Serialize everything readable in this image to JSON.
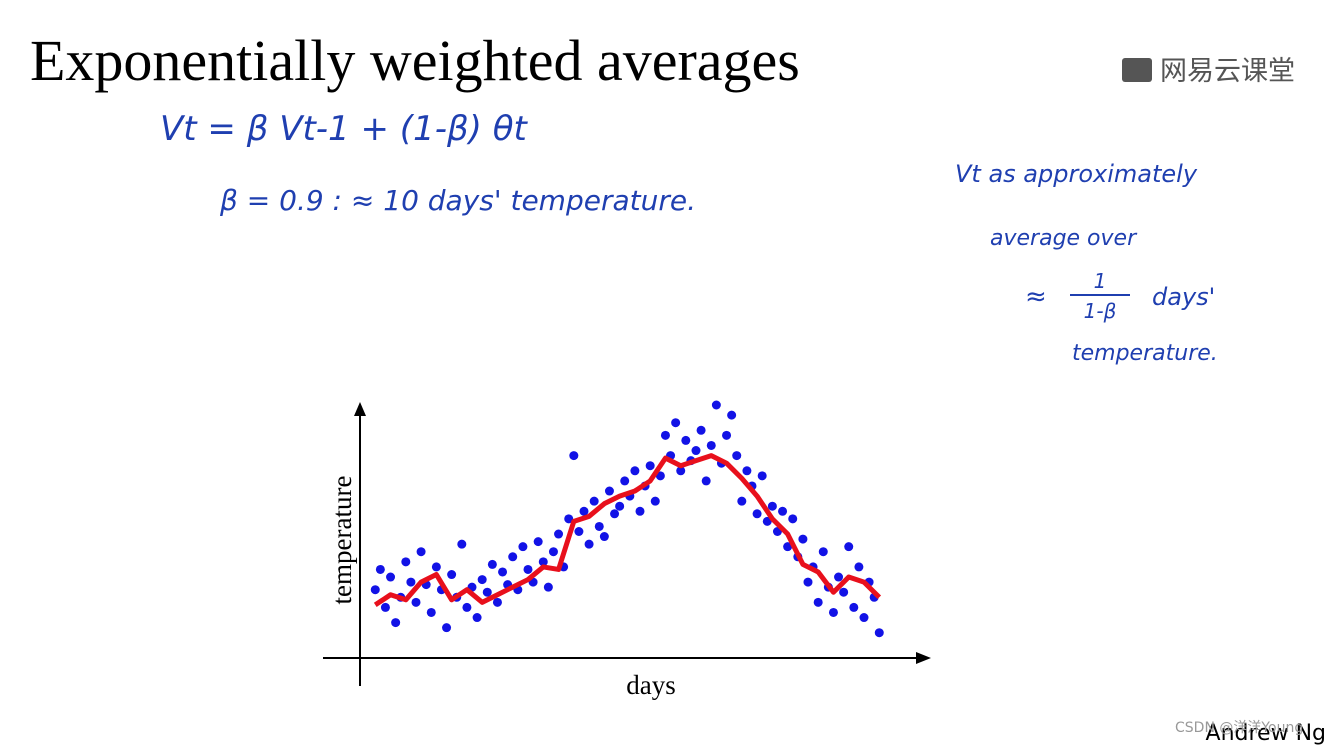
{
  "header": {
    "title": "Exponentially weighted averages",
    "logo": "网易云课堂"
  },
  "notes": {
    "formula": "Vt = β Vt-1 + (1-β) θt",
    "beta": "β = 0.9 : ≈ 10 days' temperature.",
    "side": {
      "line1": "Vt as approximately",
      "line2": "average over",
      "approx": "≈",
      "numerator": "1",
      "denominator": "1-β",
      "days": "days'",
      "line4": "temperature."
    }
  },
  "chart_data": {
    "type": "scatter",
    "xlabel": "days",
    "ylabel": "temperature",
    "xlim": [
      0,
      110
    ],
    "ylim": [
      0,
      100
    ],
    "series": [
      {
        "style": "points",
        "color": "#1212e6",
        "x": [
          3,
          4,
          5,
          6,
          7,
          8,
          9,
          10,
          11,
          12,
          13,
          14,
          15,
          16,
          17,
          18,
          19,
          20,
          21,
          22,
          23,
          24,
          25,
          26,
          27,
          28,
          29,
          30,
          31,
          32,
          33,
          34,
          35,
          36,
          37,
          38,
          39,
          40,
          41,
          42,
          43,
          44,
          45,
          46,
          47,
          48,
          49,
          50,
          51,
          52,
          53,
          54,
          55,
          56,
          57,
          58,
          59,
          60,
          61,
          62,
          63,
          64,
          65,
          66,
          67,
          68,
          69,
          70,
          71,
          72,
          73,
          74,
          75,
          76,
          77,
          78,
          79,
          80,
          81,
          82,
          83,
          84,
          85,
          86,
          87,
          88,
          89,
          90,
          91,
          92,
          93,
          94,
          95,
          96,
          97,
          98,
          99,
          100,
          101,
          102
        ],
        "values": [
          27,
          35,
          20,
          32,
          14,
          24,
          38,
          30,
          22,
          42,
          29,
          18,
          36,
          27,
          12,
          33,
          24,
          45,
          20,
          28,
          16,
          31,
          26,
          37,
          22,
          34,
          29,
          40,
          27,
          44,
          35,
          30,
          46,
          38,
          28,
          42,
          49,
          36,
          55,
          80,
          50,
          58,
          45,
          62,
          52,
          48,
          66,
          57,
          60,
          70,
          64,
          74,
          58,
          68,
          76,
          62,
          72,
          88,
          80,
          93,
          74,
          86,
          78,
          82,
          90,
          70,
          84,
          100,
          77,
          88,
          96,
          80,
          62,
          74,
          68,
          57,
          72,
          54,
          60,
          50,
          58,
          44,
          55,
          40,
          47,
          30,
          36,
          22,
          42,
          28,
          18,
          32,
          26,
          44,
          20,
          36,
          16,
          30,
          24,
          10
        ]
      },
      {
        "style": "line",
        "color": "#e8101c",
        "x": [
          3,
          6,
          9,
          12,
          15,
          18,
          21,
          24,
          27,
          30,
          33,
          36,
          39,
          42,
          45,
          48,
          51,
          54,
          57,
          60,
          63,
          66,
          69,
          72,
          75,
          78,
          81,
          84,
          87,
          90,
          93,
          96,
          99,
          102
        ],
        "values": [
          21,
          25,
          23,
          30,
          33,
          23,
          27,
          22,
          25,
          28,
          31,
          36,
          35,
          54,
          56,
          61,
          64,
          66,
          70,
          79,
          76,
          78,
          80,
          77,
          71,
          64,
          55,
          49,
          37,
          34,
          26,
          32,
          30,
          24
        ]
      }
    ]
  },
  "footer": {
    "author": "Andrew Ng",
    "watermark": "CSDN @洋洋Young"
  }
}
